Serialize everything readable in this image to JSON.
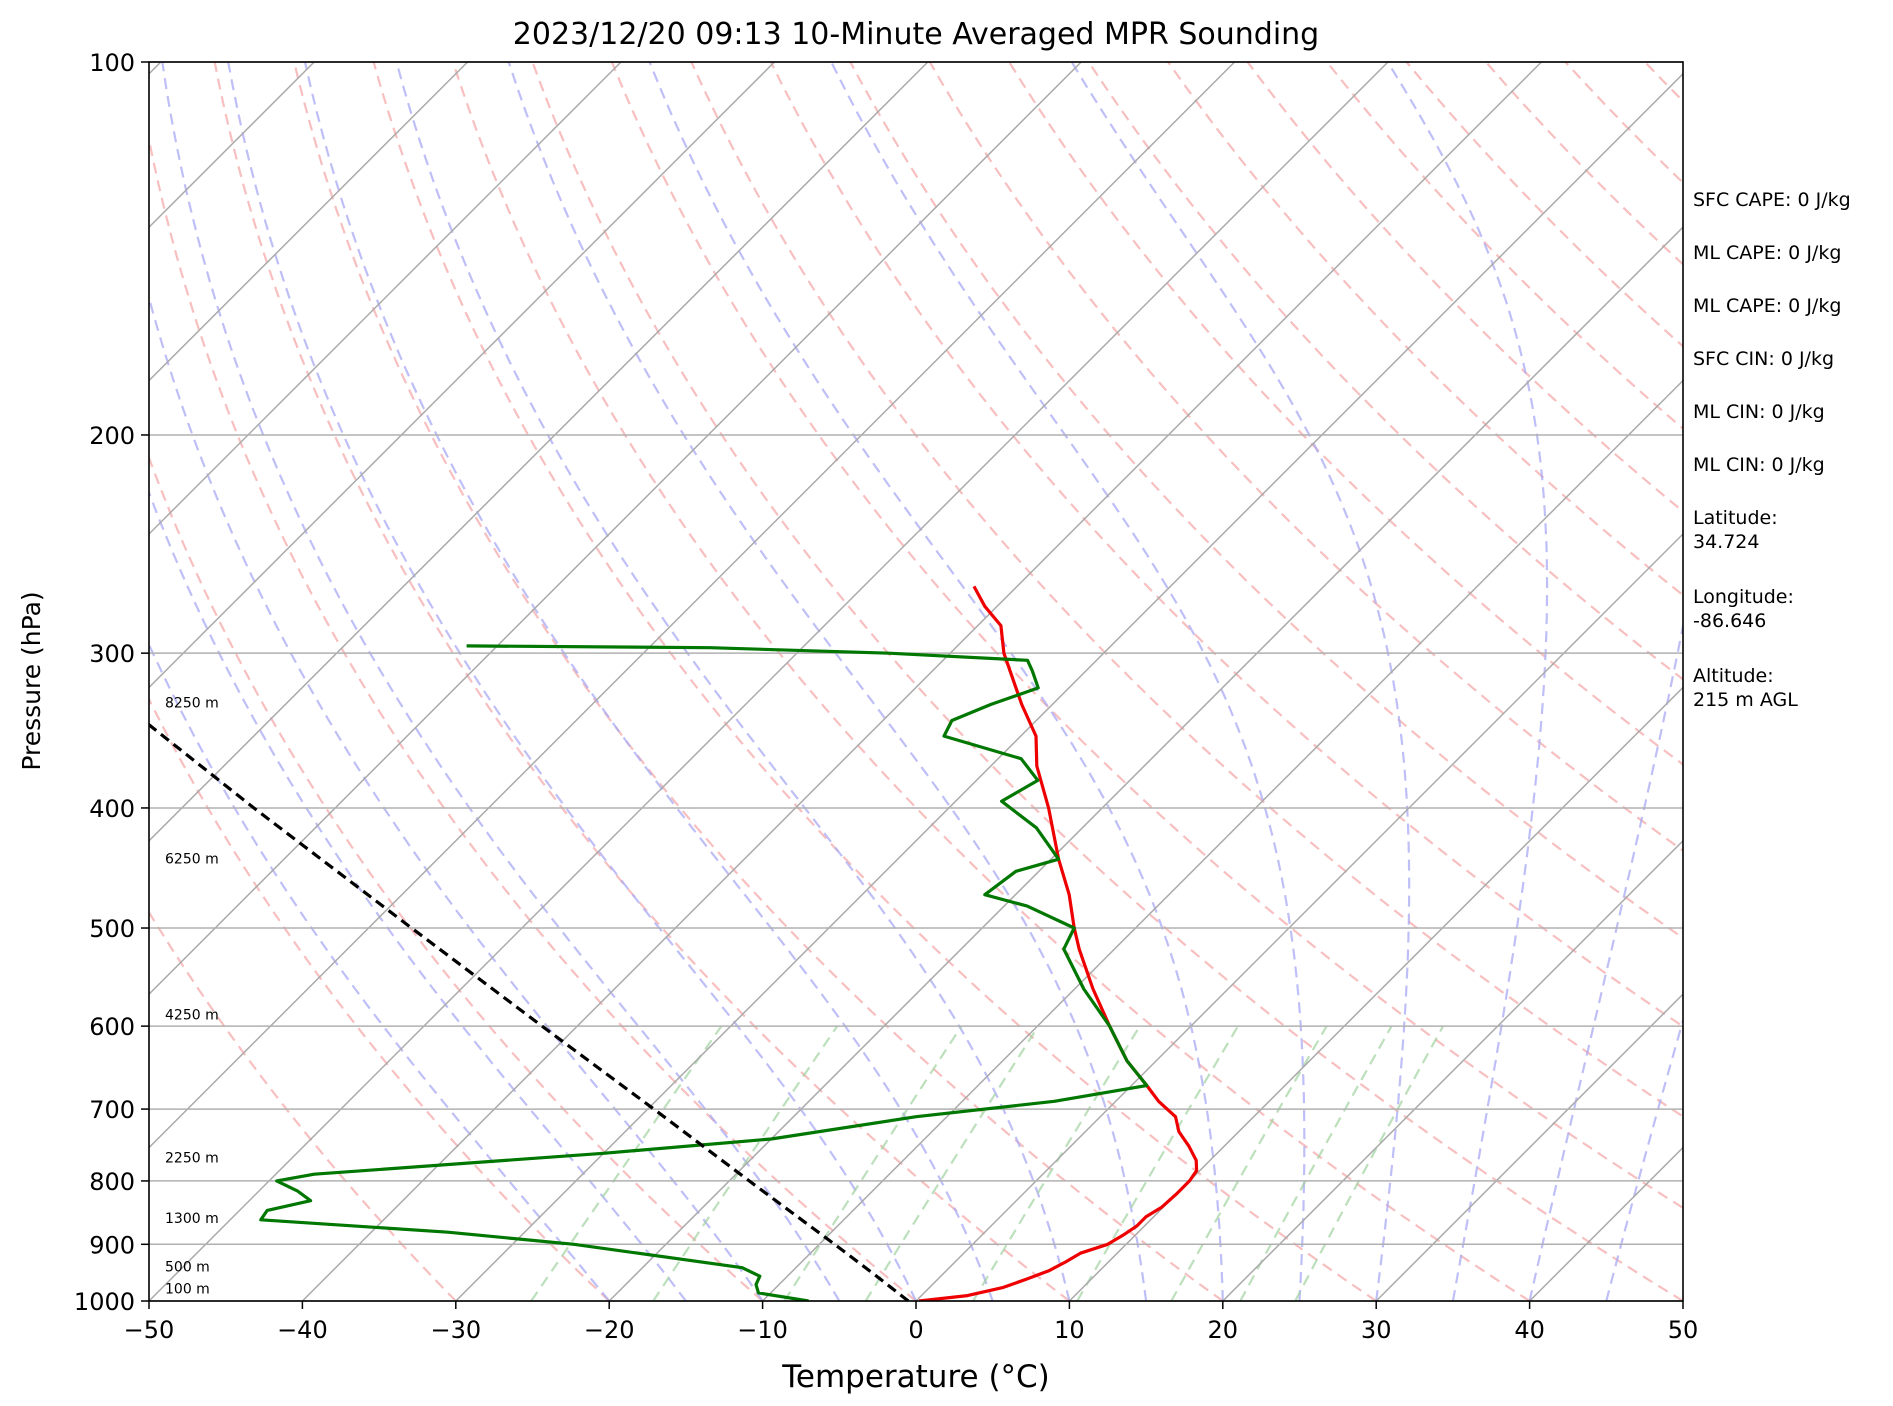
{
  "chart_data": {
    "type": "line",
    "title": "2023/12/20 09:13 10-Minute Averaged MPR Sounding",
    "xlabel": "Temperature (°C)",
    "ylabel": "Pressure (hPa)",
    "xlim": [
      -50,
      50
    ],
    "ylim": [
      1000,
      100
    ],
    "y_scale": "log",
    "skew": "skew-T log-p",
    "x_ticks": [
      -50,
      -40,
      -30,
      -20,
      -10,
      0,
      10,
      20,
      30,
      40,
      50
    ],
    "x_tick_labels": [
      "−50",
      "−40",
      "−30",
      "−20",
      "−10",
      "0",
      "10",
      "20",
      "30",
      "40",
      "50"
    ],
    "y_ticks": [
      1000,
      900,
      800,
      700,
      600,
      500,
      400,
      300,
      200,
      100
    ],
    "y_tick_labels": [
      "1000",
      "900",
      "800",
      "700",
      "600",
      "500",
      "400",
      "300",
      "200",
      "100"
    ],
    "grid": true,
    "colors": {
      "temperature": "#ee0000",
      "dewpoint": "#007700",
      "parcel": "#000000",
      "isotherm": "#aaaaaa",
      "dry_adiabat": "#f4a4a4",
      "moist_adiabat": "#aaaaf4",
      "mixing_ratio": "#9fd19f"
    },
    "series": [
      {
        "key": "temperature",
        "points": [
          {
            "p": 1000,
            "t": 0.2
          },
          {
            "p": 990,
            "t": 3.0
          },
          {
            "p": 975,
            "t": 4.8
          },
          {
            "p": 960,
            "t": 5.8
          },
          {
            "p": 945,
            "t": 6.7
          },
          {
            "p": 930,
            "t": 7.2
          },
          {
            "p": 915,
            "t": 7.6
          },
          {
            "p": 900,
            "t": 8.8
          },
          {
            "p": 885,
            "t": 9.2
          },
          {
            "p": 870,
            "t": 9.5
          },
          {
            "p": 855,
            "t": 9.5
          },
          {
            "p": 840,
            "t": 9.9
          },
          {
            "p": 820,
            "t": 10.0
          },
          {
            "p": 800,
            "t": 10.0
          },
          {
            "p": 785,
            "t": 9.8
          },
          {
            "p": 770,
            "t": 9.1
          },
          {
            "p": 750,
            "t": 7.7
          },
          {
            "p": 730,
            "t": 6.1
          },
          {
            "p": 710,
            "t": 4.9
          },
          {
            "p": 690,
            "t": 2.8
          },
          {
            "p": 670,
            "t": 1.0
          },
          {
            "p": 640,
            "t": -1.9
          },
          {
            "p": 600,
            "t": -5.3
          },
          {
            "p": 560,
            "t": -8.8
          },
          {
            "p": 520,
            "t": -12.3
          },
          {
            "p": 500,
            "t": -14.0
          },
          {
            "p": 470,
            "t": -16.5
          },
          {
            "p": 440,
            "t": -19.5
          },
          {
            "p": 400,
            "t": -23.5
          },
          {
            "p": 370,
            "t": -27.0
          },
          {
            "p": 350,
            "t": -29.0
          },
          {
            "p": 330,
            "t": -32.0
          },
          {
            "p": 300,
            "t": -36.5
          },
          {
            "p": 285,
            "t": -38.5
          },
          {
            "p": 275,
            "t": -40.8
          },
          {
            "p": 265,
            "t": -42.8
          }
        ]
      },
      {
        "key": "dewpoint",
        "points": [
          {
            "p": 1000,
            "t": -7.0
          },
          {
            "p": 985,
            "t": -10.8
          },
          {
            "p": 970,
            "t": -11.5
          },
          {
            "p": 955,
            "t": -11.8
          },
          {
            "p": 940,
            "t": -13.5
          },
          {
            "p": 900,
            "t": -26.0
          },
          {
            "p": 880,
            "t": -35.0
          },
          {
            "p": 860,
            "t": -48.0
          },
          {
            "p": 845,
            "t": -48.2
          },
          {
            "p": 830,
            "t": -46.0
          },
          {
            "p": 815,
            "t": -47.5
          },
          {
            "p": 800,
            "t": -49.5
          },
          {
            "p": 790,
            "t": -47.5
          },
          {
            "p": 760,
            "t": -30.0
          },
          {
            "p": 740,
            "t": -20.0
          },
          {
            "p": 710,
            "t": -12.0
          },
          {
            "p": 690,
            "t": -4.0
          },
          {
            "p": 670,
            "t": 1.0
          },
          {
            "p": 640,
            "t": -1.9
          },
          {
            "p": 600,
            "t": -5.3
          },
          {
            "p": 560,
            "t": -9.4
          },
          {
            "p": 520,
            "t": -13.3
          },
          {
            "p": 500,
            "t": -14.0
          },
          {
            "p": 480,
            "t": -18.5
          },
          {
            "p": 470,
            "t": -22.0
          },
          {
            "p": 450,
            "t": -21.5
          },
          {
            "p": 440,
            "t": -19.5
          },
          {
            "p": 415,
            "t": -23.0
          },
          {
            "p": 395,
            "t": -27.0
          },
          {
            "p": 380,
            "t": -26.0
          },
          {
            "p": 365,
            "t": -28.5
          },
          {
            "p": 350,
            "t": -35.0
          },
          {
            "p": 340,
            "t": -35.5
          },
          {
            "p": 330,
            "t": -34.0
          },
          {
            "p": 320,
            "t": -32.0
          },
          {
            "p": 310,
            "t": -33.5
          },
          {
            "p": 304,
            "t": -34.5
          },
          {
            "p": 300,
            "t": -44.0
          },
          {
            "p": 297,
            "t": -56.0
          },
          {
            "p": 296,
            "t": -72.0
          }
        ]
      },
      {
        "key": "parcel",
        "points": [
          {
            "p": 1000,
            "t": -0.5
          },
          {
            "p": 950,
            "t": -4.6
          },
          {
            "p": 900,
            "t": -9.0
          },
          {
            "p": 800,
            "t": -18.7
          },
          {
            "p": 700,
            "t": -29.6
          },
          {
            "p": 600,
            "t": -42.3
          },
          {
            "p": 500,
            "t": -57.2
          },
          {
            "p": 400,
            "t": -75.3
          },
          {
            "p": 320,
            "t": -93.0
          }
        ]
      }
    ],
    "height_labels": [
      {
        "p": 990,
        "text": "100 m"
      },
      {
        "p": 950,
        "text": "500 m"
      },
      {
        "p": 868,
        "text": "1300 m"
      },
      {
        "p": 776,
        "text": "2250 m"
      },
      {
        "p": 595,
        "text": "4250 m"
      },
      {
        "p": 445,
        "text": "6250 m"
      },
      {
        "p": 333,
        "text": "8250 m"
      }
    ],
    "stats": [
      "SFC CAPE: 0 J/kg",
      "ML CAPE: 0 J/kg",
      "ML CAPE: 0 J/kg",
      "SFC CIN: 0 J/kg",
      "ML CIN: 0 J/kg",
      "ML CIN: 0 J/kg",
      "Latitude:\n34.724",
      "Longitude:\n-86.646",
      "Altitude:\n215 m AGL"
    ]
  }
}
